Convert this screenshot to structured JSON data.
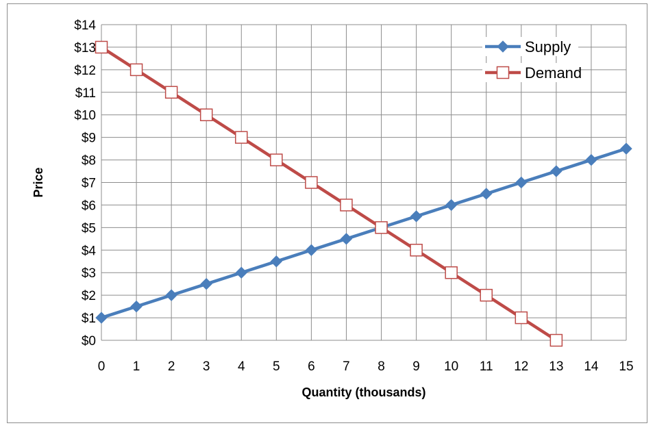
{
  "chart_data": {
    "type": "line",
    "xlabel": "Quantity (thousands)",
    "ylabel": "Price",
    "xlim": [
      0,
      15
    ],
    "ylim": [
      0,
      14
    ],
    "x_ticks": [
      "0",
      "1",
      "2",
      "3",
      "4",
      "5",
      "6",
      "7",
      "8",
      "9",
      "10",
      "11",
      "12",
      "13",
      "14",
      "15"
    ],
    "y_ticks": [
      "$0",
      "$1",
      "$2",
      "$3",
      "$4",
      "$5",
      "$6",
      "$7",
      "$8",
      "$9",
      "$10",
      "$11",
      "$12",
      "$13",
      "$14"
    ],
    "grid": true,
    "legend_position": "top-right",
    "series": [
      {
        "name": "Supply",
        "color": "#4a7ebb",
        "marker": "diamond",
        "x": [
          0,
          1,
          2,
          3,
          4,
          5,
          6,
          7,
          8,
          9,
          10,
          11,
          12,
          13,
          14,
          15
        ],
        "y": [
          1,
          1.5,
          2,
          2.5,
          3,
          3.5,
          4,
          4.5,
          5,
          5.5,
          6,
          6.5,
          7,
          7.5,
          8,
          8.5
        ]
      },
      {
        "name": "Demand",
        "color": "#be4b48",
        "marker": "square-open",
        "x": [
          0,
          1,
          2,
          3,
          4,
          5,
          6,
          7,
          8,
          9,
          10,
          11,
          12,
          13
        ],
        "y": [
          13,
          12,
          11,
          10,
          9,
          8,
          7,
          6,
          5,
          4,
          3,
          2,
          1,
          0
        ]
      }
    ]
  }
}
